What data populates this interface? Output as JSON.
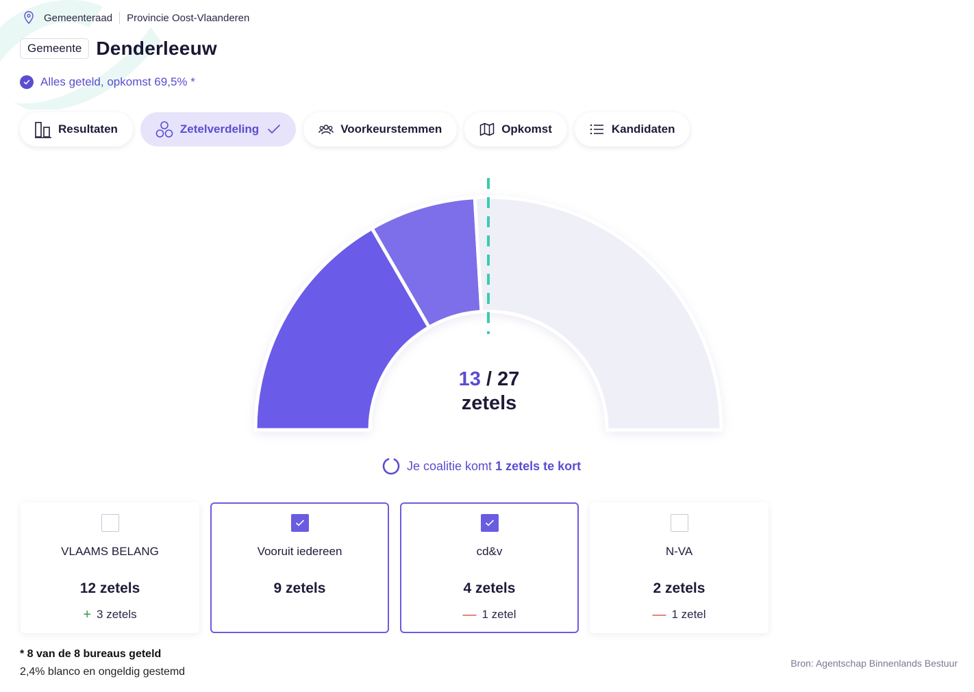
{
  "breadcrumb": {
    "items": [
      "Gemeenteraad",
      "Provincie Oost-Vlaanderen"
    ]
  },
  "header": {
    "badge": "Gemeente",
    "title": "Denderleeuw"
  },
  "status": {
    "text": "Alles geteld, opkomst 69,5% *"
  },
  "tabs": [
    {
      "label": "Resultaten",
      "icon": "bar-chart-icon",
      "active": false
    },
    {
      "label": "Zetelverdeling",
      "icon": "circles-icon",
      "active": true
    },
    {
      "label": "Voorkeurstemmen",
      "icon": "people-icon",
      "active": false
    },
    {
      "label": "Opkomst",
      "icon": "map-icon",
      "active": false
    },
    {
      "label": "Kandidaten",
      "icon": "list-icon",
      "active": false
    }
  ],
  "seats": {
    "selected": "13",
    "separator": "/",
    "total": "27",
    "unit": "zetels"
  },
  "coalition": {
    "prefix": "Je coalitie komt",
    "emphasis": "1 zetels te kort"
  },
  "parties": [
    {
      "name": "VLAAMS BELANG",
      "seats": "12 zetels",
      "delta": "3 zetels",
      "delta_sign": "+",
      "checked": false
    },
    {
      "name": "Vooruit iedereen",
      "seats": "9 zetels",
      "delta": "",
      "delta_sign": "",
      "checked": true
    },
    {
      "name": "cd&v",
      "seats": "4 zetels",
      "delta": "1 zetel",
      "delta_sign": "—",
      "checked": true
    },
    {
      "name": "N-VA",
      "seats": "2 zetels",
      "delta": "1 zetel",
      "delta_sign": "—",
      "checked": false
    }
  ],
  "footer": {
    "note": "* 8 van de 8 bureaus geteld",
    "invalid": "2,4% blanco en ongeldig gestemd",
    "source": "Bron: Agentschap Binnenlands Bestuur"
  },
  "chart_data": {
    "type": "pie",
    "subtype": "half-donut",
    "total": 27,
    "majority_marker": "half",
    "slices": [
      {
        "label": "Vooruit iedereen",
        "value": 9,
        "color": "#6a5be8"
      },
      {
        "label": "cd&v",
        "value": 4,
        "color": "#7d6ee9"
      },
      {
        "label": "remaining",
        "value": 14,
        "color": "#efeff8"
      }
    ],
    "marker_color": "#3ccbb0"
  },
  "colors": {
    "accent": "#5a4dd0",
    "plus": "#3f9a4a",
    "minus": "#d1533f"
  }
}
